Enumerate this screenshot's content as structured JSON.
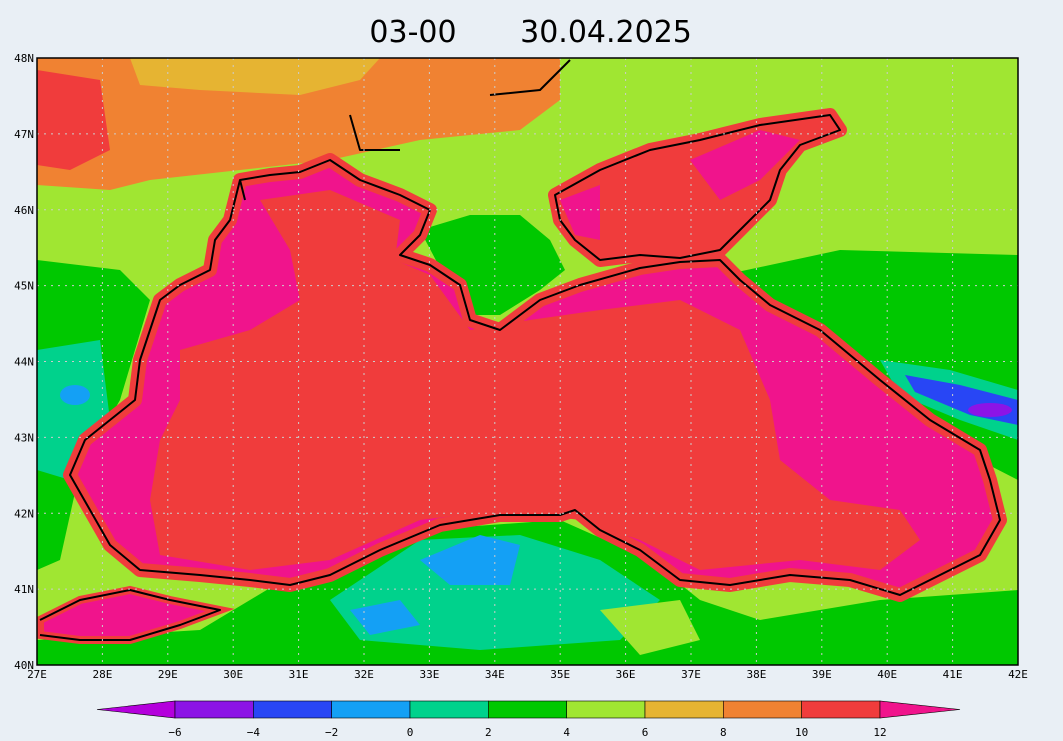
{
  "title": {
    "time": "03-00",
    "date": "30.04.2025"
  },
  "latitude_labels": [
    "40N",
    "41N",
    "42N",
    "43N",
    "44N",
    "45N",
    "46N",
    "47N",
    "48N"
  ],
  "longitude_labels": [
    "27E",
    "28E",
    "29E",
    "30E",
    "31E",
    "32E",
    "33E",
    "34E",
    "35E",
    "36E",
    "37E",
    "38E",
    "39E",
    "40E",
    "41E",
    "42E"
  ],
  "colorbar": {
    "labels": [
      "−6",
      "−4",
      "−2",
      "0",
      "2",
      "4",
      "6",
      "8",
      "10",
      "12"
    ],
    "colors": [
      "#b400dc",
      "#8c14e6",
      "#2846f5",
      "#14a0f5",
      "#00d28c",
      "#00c800",
      "#a0e632",
      "#e6b432",
      "#f08232",
      "#f03c3c",
      "#f0148c"
    ]
  }
}
